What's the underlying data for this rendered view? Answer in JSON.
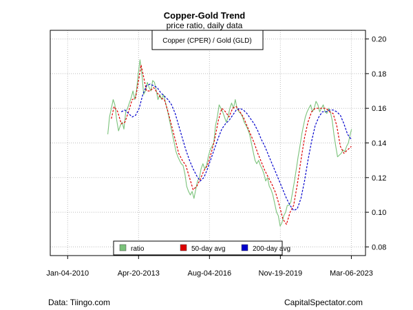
{
  "chart_data": {
    "type": "line",
    "title": "Copper-Gold Trend",
    "subtitle": "price ratio, daily data",
    "inset_label": "Copper (CPER) / Gold (GLD)",
    "xlabel": "",
    "ylabel": "",
    "x_ticks": [
      "Jan-04-2010",
      "Apr-20-2013",
      "Aug-04-2016",
      "Nov-19-2019",
      "Mar-06-2023"
    ],
    "xlim": [
      "2009-03-15",
      "2023-11-01"
    ],
    "y_ticks": [
      0.08,
      0.1,
      0.12,
      0.14,
      0.16,
      0.18,
      0.2
    ],
    "ylim": [
      0.075,
      0.205
    ],
    "grid": true,
    "legend_position": "bottom-center",
    "series": [
      {
        "name": "ratio",
        "style": "line",
        "color": "#7ac27a",
        "x": [
          "2011-11-15",
          "2011-12-15",
          "2012-01-15",
          "2012-02-15",
          "2012-03-15",
          "2012-04-15",
          "2012-05-15",
          "2012-06-15",
          "2012-07-15",
          "2012-08-15",
          "2012-09-15",
          "2012-10-15",
          "2012-11-15",
          "2012-12-15",
          "2013-01-15",
          "2013-02-15",
          "2013-03-15",
          "2013-04-15",
          "2013-05-15",
          "2013-06-15",
          "2013-07-15",
          "2013-08-15",
          "2013-09-15",
          "2013-10-15",
          "2013-11-15",
          "2013-12-15",
          "2014-01-15",
          "2014-02-15",
          "2014-03-15",
          "2014-04-15",
          "2014-05-15",
          "2014-06-15",
          "2014-07-15",
          "2014-08-15",
          "2014-09-15",
          "2014-10-15",
          "2014-11-15",
          "2014-12-15",
          "2015-01-15",
          "2015-02-15",
          "2015-03-15",
          "2015-04-15",
          "2015-05-15",
          "2015-06-15",
          "2015-07-15",
          "2015-08-15",
          "2015-09-15",
          "2015-10-15",
          "2015-11-15",
          "2015-12-15",
          "2016-01-15",
          "2016-02-15",
          "2016-03-15",
          "2016-04-15",
          "2016-05-15",
          "2016-06-15",
          "2016-07-15",
          "2016-08-15",
          "2016-09-15",
          "2016-10-15",
          "2016-11-15",
          "2016-12-15",
          "2017-01-15",
          "2017-02-15",
          "2017-03-15",
          "2017-04-15",
          "2017-05-15",
          "2017-06-15",
          "2017-07-15",
          "2017-08-15",
          "2017-09-15",
          "2017-10-15",
          "2017-11-15",
          "2017-12-15",
          "2018-01-15",
          "2018-02-15",
          "2018-03-15",
          "2018-04-15",
          "2018-05-15",
          "2018-06-15",
          "2018-07-15",
          "2018-08-15",
          "2018-09-15",
          "2018-10-15",
          "2018-11-15",
          "2018-12-15",
          "2019-01-15",
          "2019-02-15",
          "2019-03-15",
          "2019-04-15",
          "2019-05-15",
          "2019-06-15",
          "2019-07-15",
          "2019-08-15",
          "2019-09-15",
          "2019-10-15",
          "2019-11-15",
          "2019-12-15",
          "2020-01-15",
          "2020-02-15",
          "2020-03-15",
          "2020-04-15",
          "2020-05-15",
          "2020-06-15",
          "2020-07-15",
          "2020-08-15",
          "2020-09-15",
          "2020-10-15",
          "2020-11-15",
          "2020-12-15",
          "2021-01-15",
          "2021-02-15",
          "2021-03-15",
          "2021-04-15",
          "2021-05-15",
          "2021-06-15",
          "2021-07-15",
          "2021-08-15",
          "2021-09-15",
          "2021-10-15",
          "2021-11-15",
          "2021-12-15",
          "2022-01-15",
          "2022-02-15",
          "2022-03-15",
          "2022-04-15",
          "2022-05-15",
          "2022-06-15",
          "2022-07-15",
          "2022-08-15",
          "2022-09-15",
          "2022-10-15",
          "2022-11-15",
          "2022-12-15",
          "2023-01-15",
          "2023-02-15",
          "2023-03-10"
        ],
        "values": [
          0.145,
          0.155,
          0.16,
          0.165,
          0.162,
          0.153,
          0.147,
          0.15,
          0.152,
          0.148,
          0.158,
          0.16,
          0.163,
          0.166,
          0.17,
          0.165,
          0.17,
          0.18,
          0.188,
          0.18,
          0.168,
          0.17,
          0.175,
          0.172,
          0.17,
          0.176,
          0.175,
          0.17,
          0.165,
          0.168,
          0.165,
          0.168,
          0.164,
          0.16,
          0.155,
          0.15,
          0.145,
          0.14,
          0.135,
          0.132,
          0.13,
          0.128,
          0.127,
          0.122,
          0.115,
          0.112,
          0.11,
          0.112,
          0.108,
          0.113,
          0.118,
          0.12,
          0.125,
          0.128,
          0.125,
          0.127,
          0.132,
          0.136,
          0.138,
          0.14,
          0.15,
          0.155,
          0.162,
          0.16,
          0.158,
          0.155,
          0.152,
          0.155,
          0.16,
          0.163,
          0.16,
          0.165,
          0.16,
          0.158,
          0.157,
          0.155,
          0.152,
          0.15,
          0.148,
          0.145,
          0.14,
          0.135,
          0.13,
          0.128,
          0.13,
          0.127,
          0.125,
          0.122,
          0.118,
          0.12,
          0.115,
          0.113,
          0.11,
          0.105,
          0.1,
          0.098,
          0.092,
          0.094,
          0.098,
          0.1,
          0.104,
          0.104,
          0.106,
          0.112,
          0.118,
          0.125,
          0.132,
          0.138,
          0.145,
          0.15,
          0.155,
          0.158,
          0.16,
          0.162,
          0.158,
          0.16,
          0.164,
          0.162,
          0.158,
          0.16,
          0.162,
          0.158,
          0.157,
          0.16,
          0.158,
          0.153,
          0.145,
          0.138,
          0.132,
          0.133,
          0.134,
          0.136,
          0.135,
          0.138,
          0.14,
          0.145,
          0.148
        ]
      },
      {
        "name": "50-day avg",
        "style": "dashed",
        "color": "#dd0000",
        "x": [
          "2012-01-15",
          "2012-03-01",
          "2012-05-01",
          "2012-07-01",
          "2012-09-01",
          "2012-11-01",
          "2013-01-01",
          "2013-03-01",
          "2013-04-15",
          "2013-06-01",
          "2013-07-15",
          "2013-09-01",
          "2013-11-01",
          "2014-01-01",
          "2014-03-01",
          "2014-05-01",
          "2014-07-01",
          "2014-09-01",
          "2014-11-01",
          "2015-01-01",
          "2015-03-01",
          "2015-05-01",
          "2015-07-01",
          "2015-09-01",
          "2015-11-01",
          "2016-01-01",
          "2016-03-01",
          "2016-05-01",
          "2016-07-01",
          "2016-09-01",
          "2016-11-01",
          "2017-01-01",
          "2017-03-01",
          "2017-05-01",
          "2017-07-01",
          "2017-09-01",
          "2017-11-01",
          "2018-01-01",
          "2018-03-01",
          "2018-05-01",
          "2018-07-01",
          "2018-09-01",
          "2018-11-01",
          "2019-01-01",
          "2019-03-01",
          "2019-05-01",
          "2019-07-01",
          "2019-09-01",
          "2019-11-01",
          "2020-01-01",
          "2020-03-01",
          "2020-05-01",
          "2020-07-01",
          "2020-09-01",
          "2020-11-01",
          "2021-01-01",
          "2021-03-01",
          "2021-05-01",
          "2021-07-01",
          "2021-09-01",
          "2021-11-01",
          "2022-01-01",
          "2022-03-01",
          "2022-05-01",
          "2022-07-01",
          "2022-09-01",
          "2022-11-01",
          "2023-01-01",
          "2023-03-06"
        ],
        "values": [
          0.154,
          0.161,
          0.158,
          0.151,
          0.152,
          0.158,
          0.165,
          0.166,
          0.175,
          0.185,
          0.178,
          0.17,
          0.17,
          0.172,
          0.169,
          0.166,
          0.165,
          0.158,
          0.15,
          0.142,
          0.134,
          0.13,
          0.127,
          0.12,
          0.113,
          0.115,
          0.119,
          0.124,
          0.127,
          0.134,
          0.142,
          0.153,
          0.16,
          0.158,
          0.155,
          0.16,
          0.161,
          0.158,
          0.155,
          0.15,
          0.145,
          0.14,
          0.134,
          0.129,
          0.124,
          0.12,
          0.116,
          0.111,
          0.104,
          0.096,
          0.093,
          0.1,
          0.104,
          0.116,
          0.13,
          0.143,
          0.152,
          0.158,
          0.16,
          0.16,
          0.16,
          0.16,
          0.158,
          0.157,
          0.15,
          0.138,
          0.134,
          0.136,
          0.138
        ]
      },
      {
        "name": "200-day avg",
        "style": "dashed",
        "color": "#0000cc",
        "x": [
          "2012-07-01",
          "2012-09-01",
          "2012-11-01",
          "2013-01-01",
          "2013-03-01",
          "2013-05-01",
          "2013-07-01",
          "2013-09-01",
          "2013-11-01",
          "2014-01-01",
          "2014-03-01",
          "2014-05-01",
          "2014-07-01",
          "2014-09-01",
          "2014-11-01",
          "2015-01-01",
          "2015-03-01",
          "2015-05-01",
          "2015-07-01",
          "2015-09-01",
          "2015-11-01",
          "2016-01-01",
          "2016-03-01",
          "2016-05-01",
          "2016-07-01",
          "2016-09-01",
          "2016-11-01",
          "2017-01-01",
          "2017-03-01",
          "2017-05-01",
          "2017-07-01",
          "2017-09-01",
          "2017-11-01",
          "2018-01-01",
          "2018-03-01",
          "2018-05-01",
          "2018-07-01",
          "2018-09-01",
          "2018-11-01",
          "2019-01-01",
          "2019-03-01",
          "2019-05-01",
          "2019-07-01",
          "2019-09-01",
          "2019-11-01",
          "2020-01-01",
          "2020-03-01",
          "2020-05-01",
          "2020-07-01",
          "2020-09-01",
          "2020-11-01",
          "2021-01-01",
          "2021-03-01",
          "2021-05-01",
          "2021-07-01",
          "2021-09-01",
          "2021-11-01",
          "2022-01-01",
          "2022-03-01",
          "2022-05-01",
          "2022-07-01",
          "2022-09-01",
          "2022-11-01",
          "2023-01-01",
          "2023-03-06"
        ],
        "values": [
          0.158,
          0.159,
          0.157,
          0.155,
          0.156,
          0.16,
          0.168,
          0.173,
          0.174,
          0.173,
          0.172,
          0.169,
          0.167,
          0.165,
          0.162,
          0.157,
          0.15,
          0.143,
          0.136,
          0.13,
          0.125,
          0.121,
          0.118,
          0.12,
          0.125,
          0.131,
          0.137,
          0.143,
          0.148,
          0.151,
          0.153,
          0.156,
          0.159,
          0.16,
          0.159,
          0.157,
          0.154,
          0.151,
          0.147,
          0.142,
          0.138,
          0.133,
          0.128,
          0.123,
          0.118,
          0.113,
          0.108,
          0.104,
          0.101,
          0.102,
          0.108,
          0.118,
          0.13,
          0.141,
          0.15,
          0.155,
          0.158,
          0.158,
          0.159,
          0.159,
          0.158,
          0.156,
          0.151,
          0.145,
          0.142
        ]
      }
    ]
  },
  "footer": {
    "left": "Data: Tiingo.com",
    "right": "CapitalSpectator.com"
  }
}
